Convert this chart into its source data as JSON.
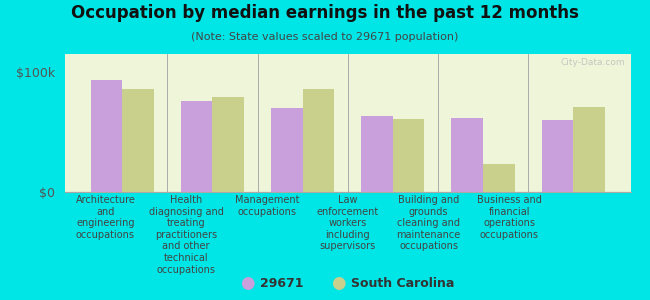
{
  "title": "Occupation by median earnings in the past 12 months",
  "subtitle": "(Note: State values scaled to 29671 population)",
  "background_color": "#00e5e5",
  "plot_bg_color": "#eef5d8",
  "bar_color_29671": "#c9a0dc",
  "bar_color_sc": "#c8d08c",
  "categories": [
    "Architecture\nand\nengineering\noccupations",
    "Health\ndiagnosing and\ntreating\npractitioners\nand other\ntechnical\noccupations",
    "Management\noccupations",
    "Law\nenforcement\nworkers\nincluding\nsupervisors",
    "Building and\ngrounds\ncleaning and\nmaintenance\noccupations",
    "Business and\nfinancial\noperations\noccupations"
  ],
  "values_29671": [
    93000,
    76000,
    70000,
    63000,
    62000,
    60000
  ],
  "values_sc": [
    86000,
    79000,
    86000,
    61000,
    23000,
    71000
  ],
  "ylim": [
    0,
    115000
  ],
  "yticks": [
    0,
    100000
  ],
  "yticklabels": [
    "$0",
    "$100k"
  ],
  "legend_labels": [
    "29671",
    "South Carolina"
  ],
  "watermark": "City-Data.com",
  "title_fontsize": 12,
  "subtitle_fontsize": 8,
  "tick_label_fontsize": 7,
  "legend_fontsize": 9
}
